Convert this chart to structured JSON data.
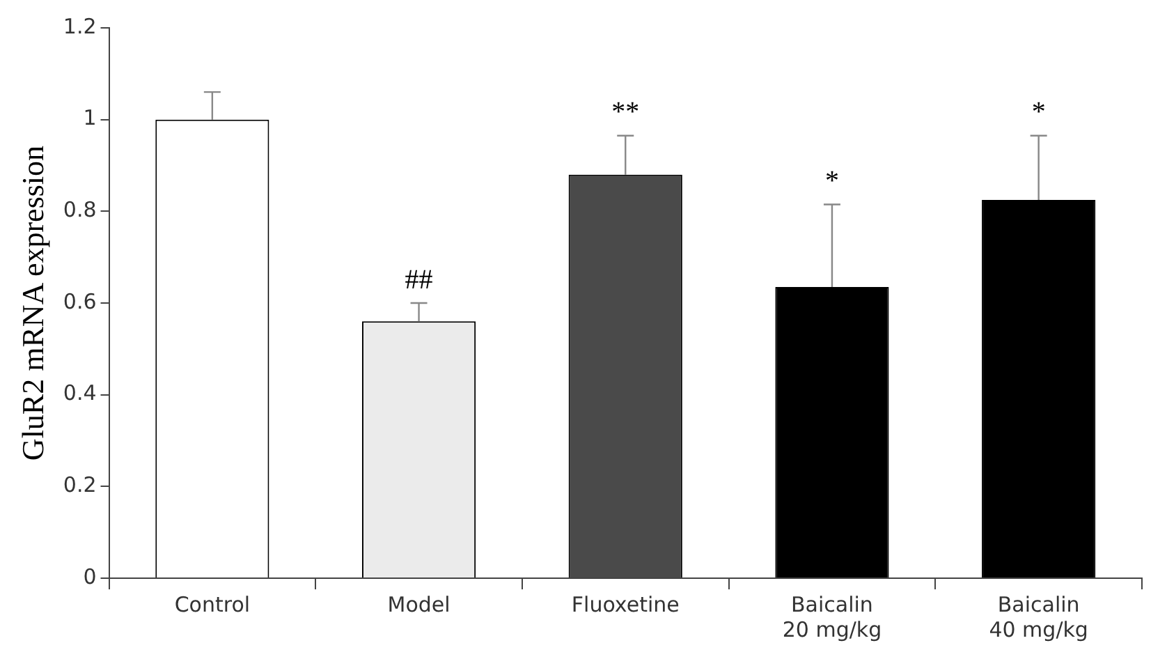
{
  "chart_data": {
    "type": "bar",
    "ylabel": "GluR2 mRNA expression",
    "categories": [
      "Control",
      "Model",
      "Fluoxetine",
      "Baicalin\n20 mg/kg",
      "Baicalin\n40 mg/kg"
    ],
    "values": [
      1.0,
      0.56,
      0.88,
      0.635,
      0.825
    ],
    "errors": [
      0.06,
      0.04,
      0.085,
      0.18,
      0.14
    ],
    "colors": [
      "#ffffff",
      "#ebebeb",
      "#4a4a4a",
      "#000000",
      "#000000"
    ],
    "ylim": [
      0,
      1.2
    ],
    "yticks": [
      0,
      0.2,
      0.4,
      0.6,
      0.8,
      1,
      1.2
    ],
    "grid": false,
    "legend": false,
    "annotations": [
      {
        "text": "##",
        "x": "Model",
        "y": 0.6
      },
      {
        "text": "**",
        "x": "Fluoxetine",
        "y": 0.965
      },
      {
        "text": "*",
        "x": "Baicalin\n20 mg/kg",
        "y": 0.815
      },
      {
        "text": "*",
        "x": "Baicalin\n40 mg/kg",
        "y": 0.965
      }
    ]
  }
}
